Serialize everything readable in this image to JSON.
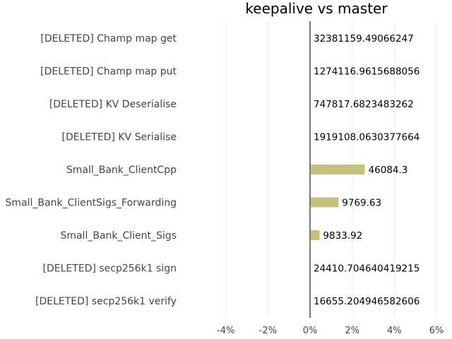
{
  "chart_data": {
    "type": "bar",
    "orientation": "horizontal",
    "title": "keepalive vs master",
    "xlabel": "",
    "ylabel": "",
    "xlim": [
      -6,
      6
    ],
    "xticks": [
      -4,
      -2,
      0,
      2,
      4,
      6
    ],
    "xtick_labels": [
      "-4%",
      "-2%",
      "0%",
      "2%",
      "4%",
      "6%"
    ],
    "grid": true,
    "bar_color": "#c5c17a",
    "axis_color": "#777777",
    "categories": [
      "[DELETED] Champ map get",
      "[DELETED] Champ map put",
      "[DELETED] KV Deserialise",
      "[DELETED] KV Serialise",
      "Small_Bank_ClientCpp",
      "Small_Bank_ClientSigs_Forwarding",
      "Small_Bank_Client_Sigs",
      "[DELETED] secp256k1 sign",
      "[DELETED] secp256k1 verify"
    ],
    "values": [
      0,
      0,
      0,
      0,
      2.6,
      1.35,
      0.45,
      0,
      0
    ],
    "value_labels": [
      "32381159.49066247",
      "1274116.9615688056",
      "747817.6823483262",
      "1919108.0630377664",
      "46084.3",
      "9769.63",
      "9833.92",
      "24410.704640419215",
      "16655.204946582606"
    ]
  }
}
